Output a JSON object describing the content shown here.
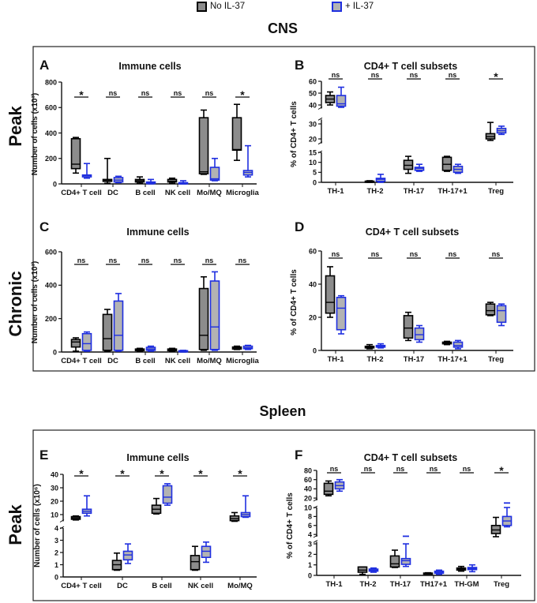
{
  "legend": [
    {
      "label": "No IL-37",
      "fill": "#8c8c8c",
      "stroke": "#000000"
    },
    {
      "label": "+ IL-37",
      "fill": "#b3b3b3",
      "stroke": "#1f2fe0"
    }
  ],
  "sections": {
    "cns": "CNS",
    "spleen": "Spleen"
  },
  "row_labels": {
    "cns_peak": "Peak",
    "cns_chronic": "Chronic",
    "spleen_peak": "Peak"
  },
  "chart_data": [
    {
      "panel": "A",
      "type": "box",
      "title": "Immune cells",
      "ylabel": "Number of cells (x10³)",
      "categories": [
        "CD4+ T cell",
        "DC",
        "B cell",
        "NK cell",
        "Mo/MQ",
        "Microglia"
      ],
      "y_segments": [
        {
          "range": [
            0,
            800
          ],
          "ticks": [
            0,
            200,
            400,
            600,
            800
          ]
        }
      ],
      "significance": [
        "*",
        "ns",
        "ns",
        "ns",
        "ns",
        "*"
      ],
      "series": [
        {
          "name": "No IL-37",
          "boxes": [
            [
              85,
              120,
              155,
              355,
              365
            ],
            [
              5,
              20,
              30,
              35,
              200
            ],
            [
              5,
              15,
              25,
              35,
              55
            ],
            [
              5,
              15,
              20,
              35,
              45
            ],
            [
              75,
              80,
              95,
              520,
              580
            ],
            [
              185,
              265,
              270,
              520,
              625
            ]
          ]
        },
        {
          "name": "+ IL-37",
          "boxes": [
            [
              45,
              55,
              65,
              70,
              160
            ],
            [
              10,
              15,
              30,
              50,
              60
            ],
            [
              0,
              3,
              8,
              15,
              35
            ],
            [
              0,
              2,
              5,
              10,
              25
            ],
            [
              25,
              30,
              40,
              130,
              200
            ],
            [
              55,
              70,
              90,
              105,
              300
            ]
          ]
        }
      ]
    },
    {
      "panel": "B",
      "type": "box",
      "title": "CD4+ T cell subsets",
      "ylabel": "% of CD4+ T cells",
      "categories": [
        "TH-1",
        "TH-2",
        "TH-17",
        "TH-17+1",
        "Treg"
      ],
      "y_segments": [
        {
          "range": [
            0,
            15
          ],
          "ticks": [
            0,
            5,
            10,
            15
          ]
        },
        {
          "range": [
            17,
            33
          ],
          "ticks": [
            20,
            30
          ]
        },
        {
          "range": [
            37,
            60
          ],
          "ticks": [
            40,
            50,
            60
          ]
        }
      ],
      "significance": [
        "ns",
        "ns",
        "ns",
        "ns",
        "*"
      ],
      "series": [
        {
          "name": "No IL-37",
          "boxes": [
            [
              40,
              42,
              45,
              48,
              51
            ],
            [
              0,
              0.2,
              0.4,
              0.6,
              0.8
            ],
            [
              4.5,
              6.5,
              8.5,
              11,
              13
            ],
            [
              5.5,
              6,
              9,
              12.5,
              13
            ],
            [
              19,
              20,
              21.5,
              23.5,
              31
            ]
          ]
        },
        {
          "name": "+ IL-37",
          "boxes": [
            [
              38,
              39,
              41,
              48,
              55
            ],
            [
              0,
              0.5,
              1.5,
              2,
              4
            ],
            [
              5.5,
              6,
              7,
              7.5,
              9
            ],
            [
              4.5,
              5,
              6.5,
              8,
              9
            ],
            [
              23,
              24,
              25.5,
              27,
              28.5
            ]
          ]
        }
      ]
    },
    {
      "panel": "C",
      "type": "box",
      "title": "Immune cells",
      "ylabel": "Number of cells (x10³)",
      "categories": [
        "CD4+ T cell",
        "DC",
        "B cell",
        "NK cell",
        "Mo/MQ",
        "Microglia"
      ],
      "y_segments": [
        {
          "range": [
            0,
            600
          ],
          "ticks": [
            0,
            200,
            400,
            600
          ]
        }
      ],
      "significance": [
        "ns",
        "ns",
        "ns",
        "ns",
        "ns",
        "ns"
      ],
      "series": [
        {
          "name": "No IL-37",
          "boxes": [
            [
              5,
              30,
              60,
              75,
              85
            ],
            [
              5,
              10,
              80,
              225,
              255
            ],
            [
              5,
              8,
              12,
              18,
              22
            ],
            [
              5,
              8,
              12,
              18,
              22
            ],
            [
              10,
              15,
              100,
              380,
              450
            ],
            [
              15,
              18,
              25,
              30,
              35
            ]
          ]
        },
        {
          "name": "+ IL-37",
          "boxes": [
            [
              5,
              10,
              50,
              110,
              120
            ],
            [
              5,
              10,
              100,
              305,
              350
            ],
            [
              5,
              10,
              18,
              28,
              35
            ],
            [
              0,
              2,
              5,
              8,
              10
            ],
            [
              10,
              15,
              150,
              425,
              480
            ],
            [
              15,
              20,
              25,
              35,
              40
            ]
          ]
        }
      ]
    },
    {
      "panel": "D",
      "type": "box",
      "title": "CD4+ T cell subsets",
      "ylabel": "% of CD4+ T cells",
      "categories": [
        "TH-1",
        "TH-2",
        "TH-17",
        "TH-17+1",
        "Treg"
      ],
      "y_segments": [
        {
          "range": [
            0,
            60
          ],
          "ticks": [
            0,
            20,
            40,
            60
          ]
        }
      ],
      "significance": [
        "ns",
        "ns",
        "ns",
        "ns",
        "ns"
      ],
      "series": [
        {
          "name": "No IL-37",
          "boxes": [
            [
              20,
              22.5,
              29,
              45,
              50.5
            ],
            [
              1,
              1.5,
              2,
              2.5,
              3.5
            ],
            [
              6,
              7.5,
              13.5,
              21,
              23
            ],
            [
              3.5,
              4,
              4.5,
              5,
              5.5
            ],
            [
              21,
              21.5,
              24,
              28,
              29
            ]
          ]
        },
        {
          "name": "+ IL-37",
          "boxes": [
            [
              10,
              12.5,
              25.5,
              32,
              33
            ],
            [
              1.5,
              2,
              2.5,
              3,
              4
            ],
            [
              5,
              6.5,
              9.5,
              13.5,
              15
            ],
            [
              1,
              2,
              3,
              5,
              6
            ],
            [
              15,
              17,
              24,
              27,
              28
            ]
          ]
        }
      ]
    },
    {
      "panel": "E",
      "type": "box",
      "title": "Immune cells",
      "ylabel": "Number of cells (x10⁶)",
      "categories": [
        "CD4+ T cell",
        "DC",
        "B cell",
        "NK cell",
        "Mo/MQ"
      ],
      "y_segments": [
        {
          "range": [
            0,
            4
          ],
          "ticks": [
            0,
            1,
            2,
            3,
            4
          ]
        },
        {
          "range": [
            5,
            40
          ],
          "ticks": [
            10,
            20,
            30,
            40
          ]
        }
      ],
      "significance": [
        "*",
        "*",
        "*",
        "*",
        "*"
      ],
      "series": [
        {
          "name": "No IL-37",
          "boxes": [
            [
              6,
              6.5,
              7.5,
              8.5,
              9
            ],
            [
              0.55,
              0.6,
              1.0,
              1.35,
              1.95
            ],
            [
              10.5,
              11,
              14,
              17,
              22
            ],
            [
              0.55,
              0.6,
              1.25,
              1.75,
              2.5
            ],
            [
              5,
              5.5,
              7,
              9,
              11.5
            ]
          ]
        },
        {
          "name": "+ IL-37",
          "boxes": [
            [
              9,
              11,
              12.5,
              14,
              24
            ],
            [
              1.1,
              1.4,
              1.8,
              2.1,
              2.7
            ],
            [
              17,
              18.5,
              23,
              31.5,
              33
            ],
            [
              1.2,
              1.6,
              2.1,
              2.5,
              2.85
            ],
            [
              8,
              8.5,
              10,
              11.5,
              24
            ]
          ]
        }
      ]
    },
    {
      "panel": "F",
      "type": "box",
      "title": "CD4+ T cell subsets",
      "ylabel": "% of CD4+ T cells",
      "categories": [
        "TH-1",
        "TH-2",
        "TH-17",
        "TH17+1",
        "TH-GM",
        "Treg"
      ],
      "y_segments": [
        {
          "range": [
            0,
            3.2
          ],
          "ticks": [
            0,
            1,
            2,
            3
          ]
        },
        {
          "range": [
            3.5,
            10
          ],
          "ticks": [
            4,
            6,
            8,
            10
          ]
        },
        {
          "range": [
            15,
            80
          ],
          "ticks": [
            20,
            40,
            60,
            80
          ]
        }
      ],
      "significance": [
        "ns",
        "ns",
        "ns",
        "ns",
        "ns",
        "*"
      ],
      "series": [
        {
          "name": "No IL-37",
          "boxes": [
            [
              25,
              28,
              35,
              52,
              57
            ],
            [
              0.1,
              0.3,
              0.5,
              0.8,
              0.8
            ],
            [
              0.75,
              0.8,
              1.1,
              1.85,
              2.4
            ],
            [
              0.15,
              0.18,
              0.2,
              0.22,
              0.25
            ],
            [
              0.4,
              0.5,
              0.6,
              0.7,
              0.85
            ],
            [
              3.5,
              4.2,
              5,
              6,
              7.8
            ]
          ],
          "outliers": [
            [],
            [],
            [],
            [],
            [],
            []
          ]
        },
        {
          "name": "+ IL-37",
          "boxes": [
            [
              35,
              40,
              47,
              55,
              60
            ],
            [
              0.3,
              0.4,
              0.5,
              0.6,
              0.7
            ],
            [
              0.85,
              1.05,
              1.4,
              1.6,
              3.0
            ],
            [
              0.1,
              0.2,
              0.3,
              0.4,
              0.5
            ],
            [
              0.35,
              0.55,
              0.65,
              0.75,
              1.0
            ],
            [
              5.7,
              6,
              7,
              8,
              10
            ]
          ],
          "outliers": [
            [],
            [],
            [
              3.6
            ],
            [],
            [],
            [
              11
            ]
          ]
        }
      ]
    }
  ]
}
